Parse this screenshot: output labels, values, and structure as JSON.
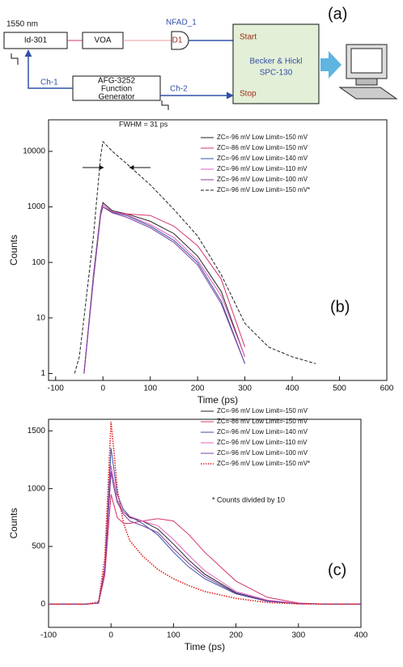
{
  "diagram": {
    "label": "(a)",
    "nodes": [
      "1550 nm",
      "Id-301",
      "VOA",
      "NFAD_1",
      "D1",
      "Start",
      "Becker & Hickl",
      "SPC-130",
      "Stop",
      "AFG-3252",
      "Function",
      "Generator",
      "Ch-1",
      "Ch-2"
    ]
  },
  "chart_data": [
    {
      "type": "line",
      "log_y": true,
      "xlabel": "Time (ps)",
      "ylabel": "Counts",
      "annotations": [
        "FWHM = 31 ps",
        "(b)"
      ],
      "x": [
        -60,
        -50,
        -40,
        -20,
        -5,
        0,
        20,
        50,
        100,
        150,
        200,
        250,
        300,
        350,
        400,
        450,
        500
      ],
      "xlim": [
        -115,
        600
      ],
      "xticks": [
        -100,
        0,
        100,
        200,
        300,
        400,
        500,
        600
      ],
      "ylim": [
        0.75,
        37000
      ],
      "yticks": [
        1,
        10,
        100,
        1000,
        10000
      ],
      "series": [
        {
          "name": "ZC=-96 mV Low Limit=-150 mV",
          "color": "#222222",
          "style": "solid",
          "values": [
            null,
            null,
            1,
            60,
            800,
            1200,
            850,
            750,
            550,
            330,
            130,
            30,
            2,
            null,
            null,
            null,
            null
          ]
        },
        {
          "name": "ZC=-86 mV Low Limit=-150 mV",
          "color": "#d6336c",
          "style": "solid",
          "values": [
            null,
            null,
            1,
            50,
            700,
            1000,
            800,
            750,
            700,
            450,
            200,
            50,
            3,
            null,
            null,
            null,
            null
          ]
        },
        {
          "name": "ZC=-96 mV Low Limit=-140 mV",
          "color": "#3b4fa0",
          "style": "solid",
          "values": [
            null,
            null,
            1,
            55,
            750,
            1100,
            800,
            700,
            450,
            250,
            100,
            20,
            1.5,
            null,
            null,
            null,
            null
          ]
        },
        {
          "name": "ZC=-96 mV Low Limit=-110 mV",
          "color": "#e060c0",
          "style": "solid",
          "values": [
            null,
            null,
            1,
            55,
            750,
            1100,
            820,
            720,
            480,
            280,
            110,
            25,
            2,
            null,
            null,
            null,
            null
          ]
        },
        {
          "name": "ZC=-96 mV Low Limit=-100 mV",
          "color": "#7a3fa0",
          "style": "solid",
          "values": [
            null,
            null,
            1,
            50,
            700,
            1000,
            780,
            650,
            420,
            230,
            90,
            18,
            1.5,
            null,
            null,
            null,
            null
          ]
        },
        {
          "name": "ZC=-96 mV Low Limit=-150 mV*",
          "color": "#222222",
          "style": "dashed",
          "values": [
            1,
            2,
            10,
            300,
            8000,
            15000,
            10000,
            6000,
            2500,
            900,
            300,
            60,
            8,
            3,
            2,
            1.5,
            null
          ]
        }
      ]
    },
    {
      "type": "line",
      "log_y": false,
      "xlabel": "Time (ps)",
      "ylabel": "Counts",
      "annotations": [
        "* Counts divided by 10",
        "(c)"
      ],
      "x": [
        -100,
        -40,
        -20,
        -10,
        0,
        5,
        10,
        20,
        30,
        50,
        75,
        100,
        125,
        150,
        200,
        250,
        300,
        350,
        400
      ],
      "xlim": [
        -100,
        400
      ],
      "xticks": [
        -100,
        0,
        100,
        200,
        300,
        400
      ],
      "ylim": [
        -200,
        1600
      ],
      "yticks": [
        0,
        500,
        1000,
        1500
      ],
      "series": [
        {
          "name": "ZC=-96 mV Low Limit=-150 mV",
          "color": "#222222",
          "style": "solid",
          "values": [
            0,
            0,
            10,
            300,
            1150,
            1000,
            900,
            800,
            750,
            720,
            650,
            520,
            380,
            260,
            100,
            30,
            5,
            0,
            0
          ]
        },
        {
          "name": "ZC=-86 mV Low Limit=-150 mV",
          "color": "#d6336c",
          "style": "solid",
          "values": [
            0,
            0,
            10,
            250,
            950,
            850,
            750,
            700,
            700,
            720,
            740,
            720,
            600,
            450,
            200,
            60,
            10,
            0,
            0
          ]
        },
        {
          "name": "ZC=-96 mV Low Limit=-140 mV",
          "color": "#3b4fa0",
          "style": "solid",
          "values": [
            0,
            0,
            10,
            320,
            1350,
            1150,
            950,
            820,
            760,
            700,
            600,
            450,
            320,
            220,
            90,
            25,
            5,
            0,
            0
          ]
        },
        {
          "name": "ZC=-96 mV Low Limit=-110 mV",
          "color": "#e060c0",
          "style": "solid",
          "values": [
            0,
            0,
            10,
            330,
            1200,
            1050,
            900,
            800,
            760,
            720,
            680,
            560,
            420,
            290,
            110,
            35,
            6,
            0,
            0
          ]
        },
        {
          "name": "ZC=-96 mV Low Limit=-100 mV",
          "color": "#7a3fa0",
          "style": "solid",
          "values": [
            0,
            0,
            10,
            300,
            1150,
            1000,
            880,
            780,
            720,
            680,
            620,
            480,
            350,
            240,
            95,
            28,
            5,
            0,
            0
          ]
        },
        {
          "name": "ZC=-96 mV Low Limit=-150 mV*",
          "color": "#e02020",
          "style": "dotted",
          "values": [
            0,
            0,
            20,
            400,
            1580,
            1300,
            1000,
            700,
            550,
            420,
            300,
            220,
            160,
            110,
            50,
            15,
            3,
            0,
            0
          ]
        }
      ]
    }
  ]
}
